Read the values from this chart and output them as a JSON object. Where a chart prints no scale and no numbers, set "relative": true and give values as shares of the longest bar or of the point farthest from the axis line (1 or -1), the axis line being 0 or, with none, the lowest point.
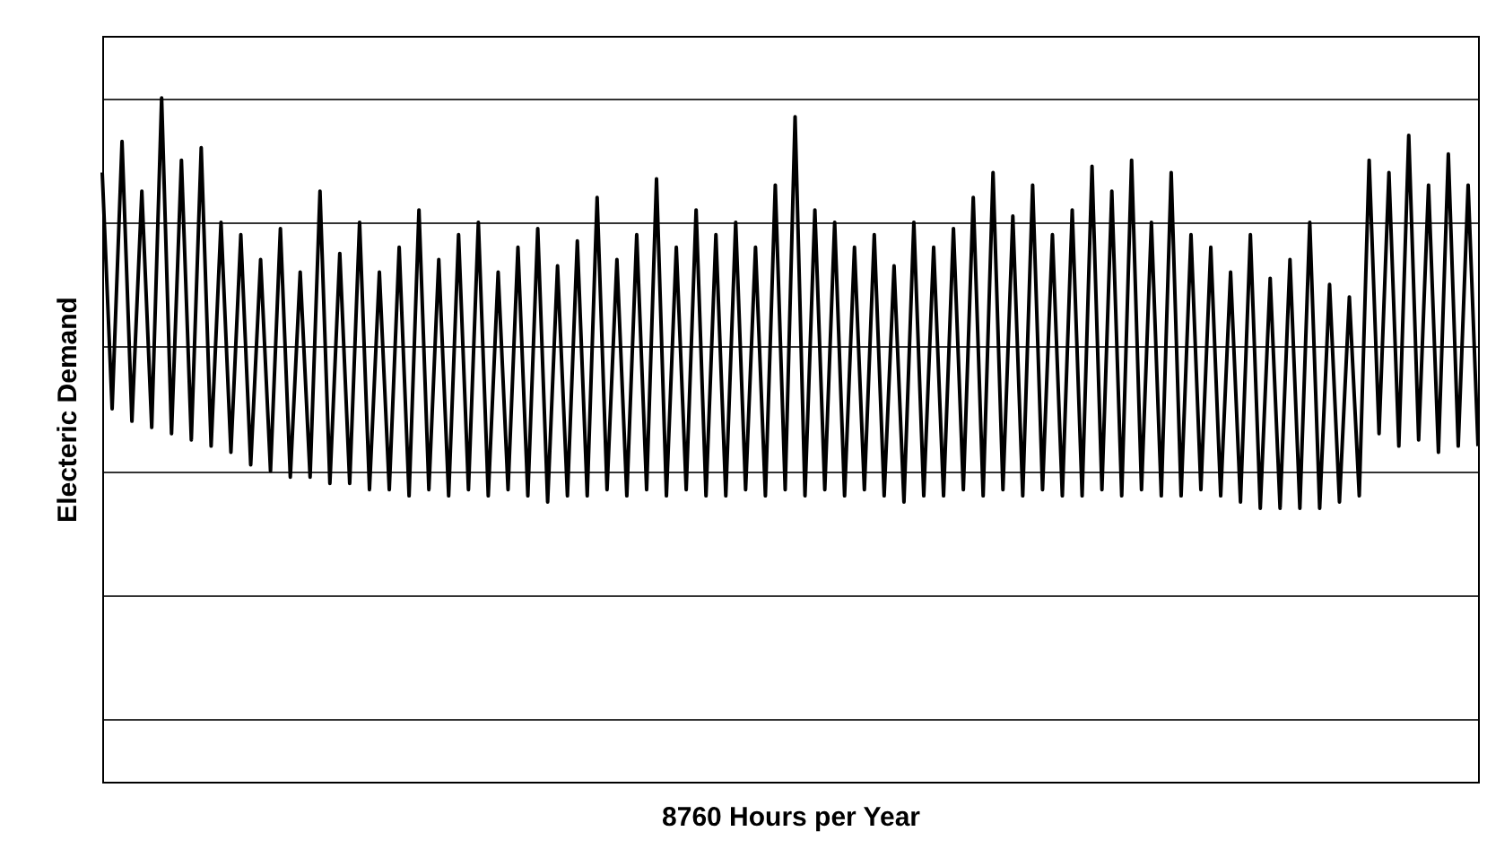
{
  "chart_data": {
    "type": "line",
    "xlabel": "8760 Hours per Year",
    "ylabel": "Electeric Demand",
    "relative": true,
    "grid": "y",
    "tick_labels": false,
    "line_style": "solid",
    "categories": [
      null,
      null,
      null,
      null,
      null,
      null,
      null,
      null,
      null,
      null,
      null,
      null,
      null,
      null,
      null,
      null,
      null,
      null,
      null,
      null,
      null,
      null,
      null,
      null,
      null,
      null,
      null,
      null,
      null,
      null,
      null,
      null,
      null,
      null,
      null,
      null,
      null,
      null,
      null,
      null,
      null,
      null,
      null,
      null,
      null,
      null,
      null,
      null,
      null,
      null,
      null,
      null,
      null,
      null,
      null,
      null,
      null,
      null,
      null,
      null,
      null,
      null,
      null,
      null,
      null,
      null,
      null,
      null,
      null,
      null,
      null,
      null,
      null,
      null,
      null,
      null,
      null,
      null,
      null,
      null,
      null,
      null,
      null,
      null,
      null,
      null,
      null,
      null,
      null,
      null,
      null,
      null,
      null,
      null,
      null,
      null,
      null,
      null,
      null,
      null,
      null,
      null,
      null,
      null,
      null,
      null,
      null,
      null,
      null,
      null,
      null,
      null,
      null,
      null,
      null,
      null,
      null,
      null,
      null,
      null,
      null,
      null,
      null,
      null,
      null,
      null,
      null,
      null,
      null,
      null,
      null,
      null,
      null,
      null,
      null,
      null,
      null,
      null,
      null,
      null
    ],
    "series": [
      {
        "color": "#000000",
        "values": [
          0.88,
          0.5,
          0.93,
          0.48,
          0.85,
          0.47,
          1.0,
          0.46,
          0.9,
          0.45,
          0.92,
          0.44,
          0.8,
          0.43,
          0.78,
          0.41,
          0.74,
          0.4,
          0.79,
          0.39,
          0.72,
          0.39,
          0.85,
          0.38,
          0.75,
          0.38,
          0.8,
          0.37,
          0.72,
          0.37,
          0.76,
          0.36,
          0.82,
          0.37,
          0.74,
          0.36,
          0.78,
          0.37,
          0.8,
          0.36,
          0.72,
          0.37,
          0.76,
          0.36,
          0.79,
          0.35,
          0.73,
          0.36,
          0.77,
          0.36,
          0.84,
          0.37,
          0.74,
          0.36,
          0.78,
          0.37,
          0.87,
          0.36,
          0.76,
          0.37,
          0.82,
          0.36,
          0.78,
          0.36,
          0.8,
          0.37,
          0.76,
          0.36,
          0.86,
          0.37,
          0.97,
          0.36,
          0.82,
          0.37,
          0.8,
          0.36,
          0.76,
          0.37,
          0.78,
          0.36,
          0.73,
          0.35,
          0.8,
          0.36,
          0.76,
          0.36,
          0.79,
          0.37,
          0.84,
          0.36,
          0.88,
          0.37,
          0.81,
          0.36,
          0.86,
          0.37,
          0.78,
          0.36,
          0.82,
          0.36,
          0.89,
          0.37,
          0.85,
          0.36,
          0.9,
          0.37,
          0.8,
          0.36,
          0.88,
          0.36,
          0.78,
          0.37,
          0.76,
          0.36,
          0.72,
          0.35,
          0.78,
          0.34,
          0.71,
          0.34,
          0.74,
          0.34,
          0.8,
          0.34,
          0.7,
          0.35,
          0.68,
          0.36,
          0.9,
          0.46,
          0.88,
          0.44,
          0.94,
          0.45,
          0.86,
          0.43,
          0.91,
          0.44,
          0.86,
          0.44
        ]
      }
    ]
  }
}
